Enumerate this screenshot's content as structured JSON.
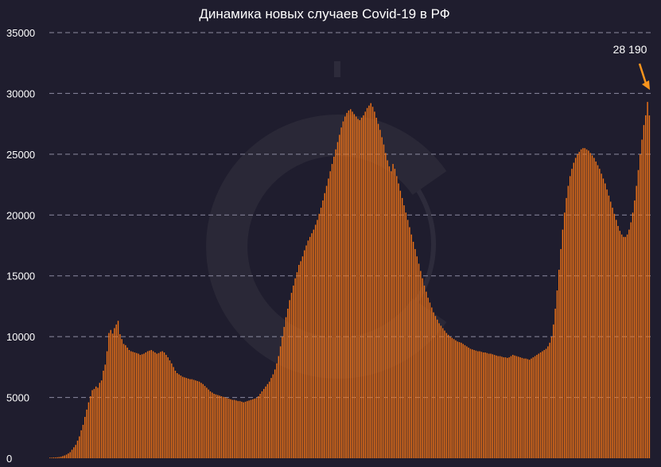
{
  "colors": {
    "background": "#1f1d2e",
    "bar": "#f07317",
    "bar_edge": "#ff9b3d",
    "grid": "#8c8aa0",
    "text": "#ffffff",
    "watermark": "#3a3847"
  },
  "watermark": {
    "icon": "circle-c-logo-icon"
  },
  "chart_data": {
    "type": "bar",
    "title": "Динамика новых случаев Covid-19 в РФ",
    "xlabel": "",
    "ylabel": "",
    "ylim": [
      0,
      35000
    ],
    "yticks": [
      0,
      5000,
      10000,
      15000,
      20000,
      25000,
      30000,
      35000
    ],
    "ytick_labels": [
      "0",
      "5000",
      "10000",
      "15000",
      "20000",
      "25000",
      "30000",
      "35000"
    ],
    "grid": true,
    "annotation": {
      "text": "28 190",
      "value": 28190
    },
    "series": [
      {
        "values": [
          50,
          50,
          70,
          70,
          80,
          100,
          130,
          180,
          230,
          300,
          400,
          500,
          700,
          900,
          1100,
          1450,
          1800,
          2300,
          2750,
          3400,
          4000,
          4600,
          5100,
          5600,
          5700,
          5900,
          5800,
          6200,
          6400,
          7200,
          7700,
          8800,
          10300,
          10550,
          10250,
          10700,
          11000,
          11300,
          10200,
          9800,
          9400,
          9300,
          9100,
          8900,
          8800,
          8750,
          8700,
          8650,
          8600,
          8500,
          8550,
          8600,
          8700,
          8800,
          8850,
          8900,
          8800,
          8700,
          8600,
          8650,
          8750,
          8800,
          8700,
          8500,
          8300,
          8050,
          7800,
          7500,
          7200,
          7000,
          6900,
          6800,
          6700,
          6650,
          6600,
          6550,
          6500,
          6500,
          6450,
          6400,
          6350,
          6300,
          6200,
          6100,
          5950,
          5800,
          5650,
          5500,
          5400,
          5300,
          5250,
          5200,
          5150,
          5100,
          5050,
          5000,
          4950,
          4900,
          4850,
          4800,
          4800,
          4750,
          4700,
          4700,
          4650,
          4600,
          4650,
          4700,
          4750,
          4800,
          4850,
          4900,
          4950,
          5100,
          5300,
          5500,
          5700,
          5900,
          6100,
          6300,
          6600,
          6900,
          7300,
          7800,
          8400,
          9200,
          10000,
          10800,
          11600,
          12300,
          13000,
          13600,
          14200,
          14800,
          15300,
          15900,
          16200,
          16600,
          17100,
          17500,
          17900,
          18200,
          18500,
          18800,
          19200,
          19600,
          20100,
          20600,
          21200,
          21800,
          22400,
          23000,
          23600,
          24200,
          24800,
          25400,
          26000,
          26600,
          27200,
          27700,
          28100,
          28400,
          28600,
          28700,
          28500,
          28300,
          28100,
          27900,
          27800,
          28000,
          28200,
          28500,
          28800,
          29000,
          29200,
          28900,
          28500,
          28000,
          27500,
          27000,
          26400,
          25800,
          25100,
          24500,
          24000,
          23600,
          24200,
          23800,
          23200,
          22600,
          22000,
          21400,
          20800,
          20200,
          19600,
          19000,
          18400,
          17800,
          17200,
          16600,
          16000,
          15400,
          14800,
          14200,
          13700,
          13200,
          12800,
          12400,
          12000,
          11700,
          11400,
          11100,
          10900,
          10700,
          10500,
          10300,
          10150,
          10000,
          9900,
          9800,
          9700,
          9600,
          9550,
          9500,
          9400,
          9300,
          9200,
          9100,
          9000,
          8950,
          8900,
          8850,
          8800,
          8800,
          8750,
          8700,
          8700,
          8650,
          8600,
          8600,
          8550,
          8500,
          8450,
          8400,
          8400,
          8350,
          8300,
          8300,
          8250,
          8300,
          8400,
          8500,
          8450,
          8400,
          8350,
          8300,
          8250,
          8200,
          8200,
          8150,
          8100,
          8200,
          8300,
          8400,
          8500,
          8600,
          8700,
          8800,
          8900,
          9000,
          9200,
          9500,
          10000,
          11000,
          12300,
          13800,
          15500,
          17200,
          18800,
          20200,
          21400,
          22400,
          23200,
          23800,
          24300,
          24700,
          25000,
          25200,
          25400,
          25500,
          25500,
          25400,
          25300,
          25100,
          24900,
          24700,
          24400,
          24100,
          23800,
          23400,
          23000,
          22600,
          22100,
          21600,
          21100,
          20600,
          20100,
          19600,
          19100,
          18700,
          18400,
          18200,
          18200,
          18400,
          18800,
          19400,
          20200,
          21200,
          22400,
          23700,
          25000,
          26200,
          27400,
          28200,
          29300,
          28190
        ]
      }
    ]
  }
}
